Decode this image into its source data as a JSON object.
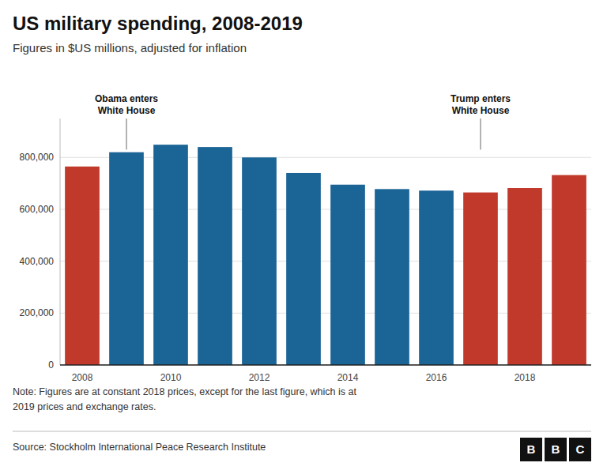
{
  "chart_data": {
    "type": "bar",
    "title": "US military spending, 2008-2019",
    "subtitle": "Figures in $US millions, adjusted for inflation",
    "categories": [
      "2008",
      null,
      "2010",
      null,
      "2012",
      null,
      "2014",
      null,
      "2016",
      null,
      "2018",
      null
    ],
    "values": [
      765000,
      820000,
      849000,
      840000,
      800000,
      740000,
      695000,
      678000,
      672000,
      665000,
      682000,
      732000
    ],
    "colors": [
      "#c0392b",
      "#1a6496",
      "#1a6496",
      "#1a6496",
      "#1a6496",
      "#1a6496",
      "#1a6496",
      "#1a6496",
      "#1a6496",
      "#c0392b",
      "#c0392b",
      "#c0392b"
    ],
    "ylim": [
      0,
      950000
    ],
    "yticks": [
      0,
      {
        "value": 200000,
        "label": "200,000"
      },
      {
        "value": 400000,
        "label": "400,000"
      },
      {
        "value": 600000,
        "label": "600,000"
      },
      {
        "value": 800000,
        "label": "800,000"
      }
    ],
    "grid": true,
    "annotations": [
      {
        "text": "Obama enters\nWhite House",
        "index": 1,
        "y": 830000
      },
      {
        "text": "Trump enters\nWhite House",
        "index": 9,
        "y": 830000
      }
    ],
    "notes": [
      "Note: Figures are at constant 2018 prices, except for the last figure, which is at",
      "2019 prices and exchange rates."
    ],
    "source": "Source: Stockholm International Peace Research Institute",
    "logo": "BBC"
  }
}
